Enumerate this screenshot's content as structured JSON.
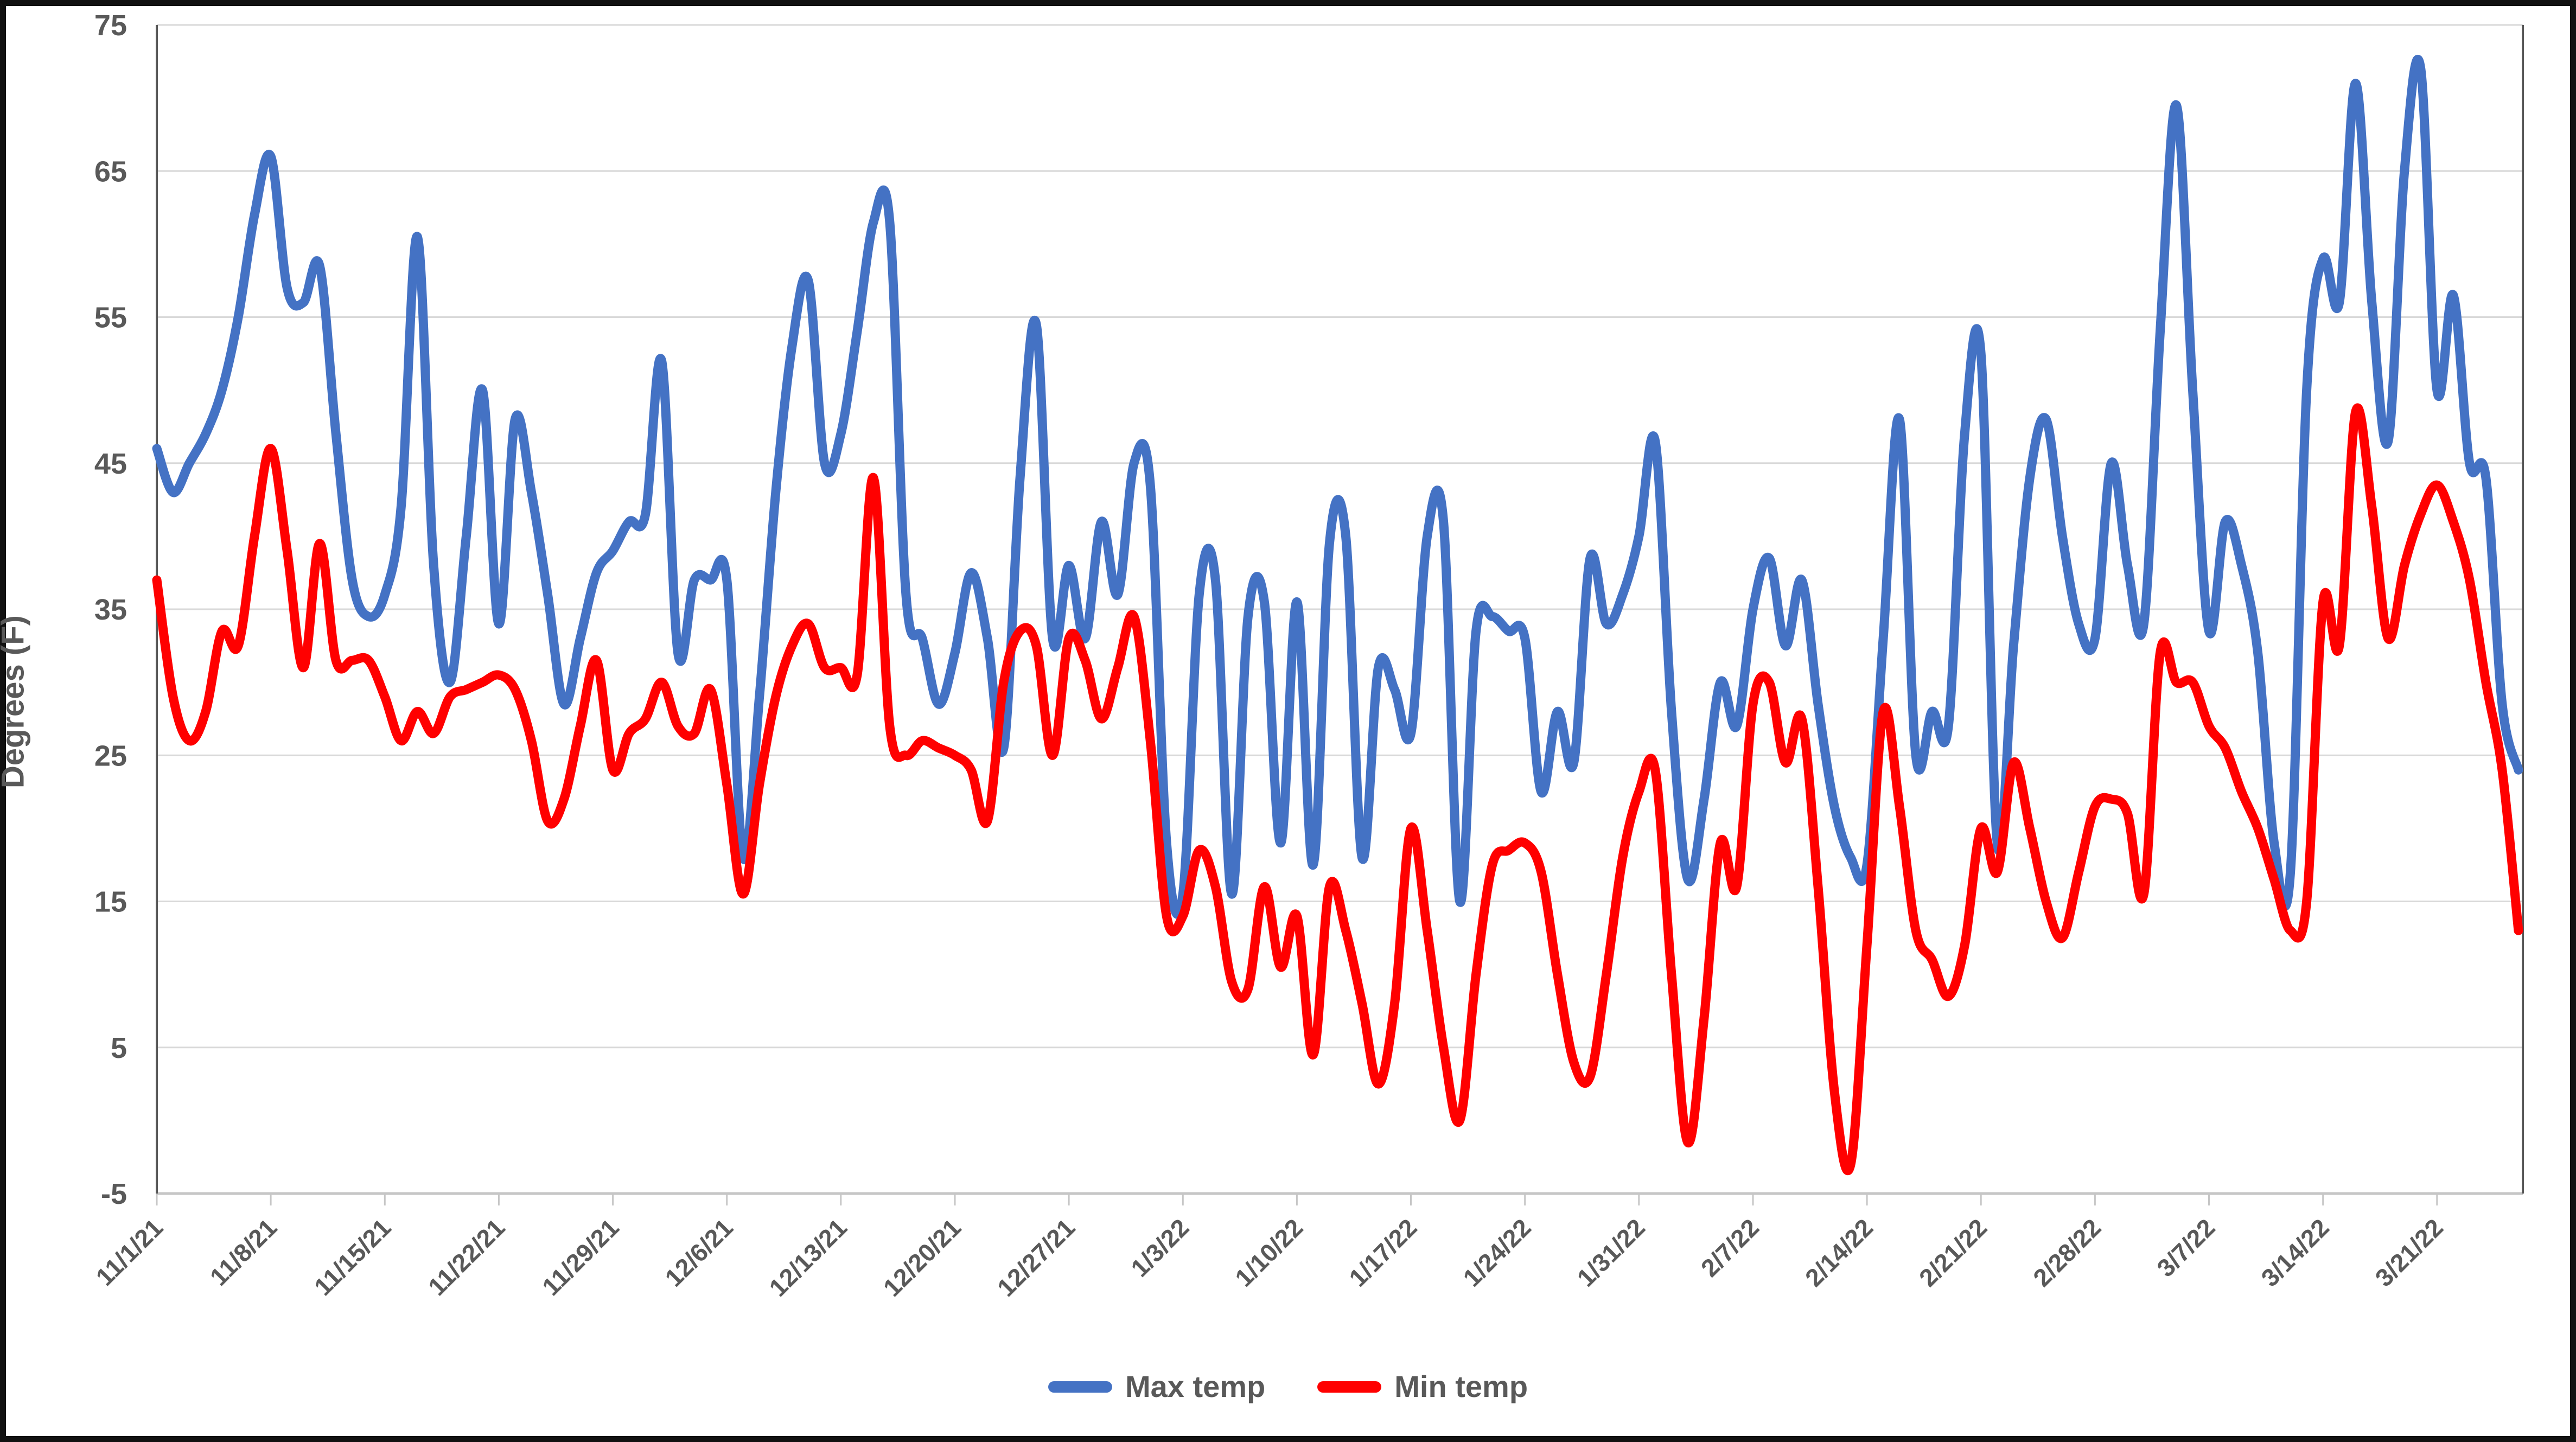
{
  "chart_data": {
    "type": "line",
    "title": "",
    "xlabel": "",
    "ylabel": "Degrees (F)",
    "x_start": "11/1/21",
    "x_end": "3/26/22",
    "x_tick_interval_days": 7,
    "x_tick_labels": [
      "11/1/21",
      "11/8/21",
      "11/15/21",
      "11/22/21",
      "11/29/21",
      "12/6/21",
      "12/13/21",
      "12/20/21",
      "12/27/21",
      "1/3/22",
      "1/10/22",
      "1/17/22",
      "1/24/22",
      "1/31/22",
      "2/7/22",
      "2/14/22",
      "2/21/22",
      "2/28/22",
      "3/7/22",
      "3/14/22",
      "3/21/22"
    ],
    "y_ticks": [
      75,
      65,
      55,
      45,
      35,
      25,
      15,
      5,
      -5
    ],
    "ylim": [
      -5,
      75
    ],
    "grid": "horizontal",
    "line_style": "smooth",
    "legend_position": "bottom",
    "series": [
      {
        "name": "Max temp",
        "color": "#4472C4",
        "values": [
          46,
          43,
          45,
          47,
          50,
          55,
          62,
          66,
          57,
          56,
          58.5,
          47,
          37,
          34.5,
          36,
          42,
          60.5,
          38,
          30,
          40,
          50,
          34,
          48,
          43,
          36,
          28.5,
          33,
          37.5,
          39,
          41,
          41.5,
          52,
          32,
          37,
          37,
          37,
          18,
          29,
          43,
          53,
          57.5,
          45,
          47,
          54,
          61.5,
          61.5,
          36,
          33,
          28.5,
          32,
          37.5,
          33,
          25.5,
          44,
          54.5,
          33,
          38,
          33,
          41,
          36,
          45,
          43.5,
          19,
          15.5,
          36,
          37,
          15.5,
          34.5,
          35.5,
          19,
          35.5,
          17.5,
          39.5,
          40,
          18,
          31,
          29.5,
          26.5,
          40,
          41,
          15,
          33.5,
          34.5,
          33.5,
          33,
          22.5,
          28,
          24.5,
          38.5,
          34,
          36,
          40,
          46.5,
          28,
          16.5,
          22,
          30,
          27,
          35,
          38.5,
          32.5,
          37,
          28.5,
          21.5,
          18,
          17.5,
          33,
          48,
          25,
          28,
          27,
          47,
          52.5,
          19,
          32.5,
          44,
          48,
          40,
          34,
          33,
          45,
          38,
          34,
          54,
          69.5,
          50,
          33.5,
          41,
          38,
          32,
          19,
          17,
          50,
          59,
          56,
          71,
          56,
          46.5,
          65,
          72,
          50,
          56.5,
          45,
          44,
          28.5,
          24
        ]
      },
      {
        "name": "Min temp",
        "color": "#FF0000",
        "values": [
          37,
          29,
          26,
          28,
          33.5,
          32.5,
          40,
          46,
          39,
          31,
          39.5,
          31.5,
          31.5,
          31.5,
          29,
          26,
          28,
          26.5,
          29,
          29.5,
          30,
          30.5,
          29.5,
          26,
          20.5,
          22,
          27,
          31.5,
          24,
          26.5,
          27.5,
          30,
          27,
          26.5,
          29.5,
          23,
          15.5,
          23,
          29,
          32.5,
          34,
          31,
          31,
          30.5,
          44,
          27,
          25,
          26,
          25.5,
          25,
          24,
          20.5,
          30,
          33.5,
          32.5,
          25,
          33,
          31.5,
          27.5,
          31,
          34.5,
          26,
          14,
          14,
          18.5,
          16,
          9.5,
          9,
          16,
          10.5,
          14,
          4.5,
          16,
          13,
          8,
          2.5,
          8,
          20,
          13,
          5,
          0,
          10,
          17.5,
          18.5,
          19,
          17,
          10,
          4,
          3,
          10,
          18,
          22.5,
          24,
          10,
          -1.5,
          7,
          19,
          16,
          28.5,
          30,
          24.5,
          27.5,
          16,
          2,
          -3,
          12,
          28,
          21.5,
          13,
          11,
          8.5,
          12,
          20,
          17,
          24.5,
          20,
          15,
          12.5,
          17,
          21.5,
          22,
          21,
          15.5,
          32,
          30,
          30,
          27,
          25.5,
          22.5,
          20,
          16.5,
          13,
          15,
          35.5,
          32.5,
          48.5,
          42,
          33,
          38,
          41.5,
          43.5,
          41,
          37,
          30,
          24,
          13
        ]
      }
    ]
  },
  "colors": {
    "text": "#595959",
    "gridline": "#D9D9D9",
    "axis_light": "#C6C6C6",
    "axis_dark": "#595959",
    "frame_border": "#111111",
    "background": "#FFFFFF"
  }
}
